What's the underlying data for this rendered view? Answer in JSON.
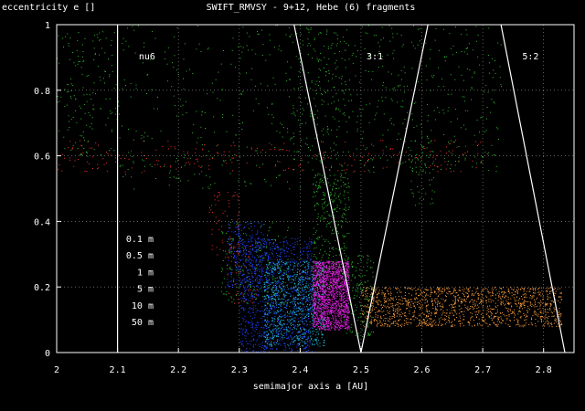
{
  "chart_data": {
    "type": "scatter",
    "title": "SWIFT_RMVSY - 9+12, Hebe (6) fragments",
    "ylabel": "eccentricity e []",
    "xlabel": "semimajor axis a [AU]",
    "xlim": [
      2.0,
      2.85
    ],
    "ylim": [
      0,
      1
    ],
    "x_ticks": [
      "2",
      "2.1",
      "2.2",
      "2.3",
      "2.4",
      "2.5",
      "2.6",
      "2.7",
      "2.8"
    ],
    "y_ticks": [
      "0",
      "0.2",
      "0.4",
      "0.6",
      "0.8",
      "1"
    ],
    "grid": true,
    "legend_labels": [
      "0.1 m",
      "0.5 m",
      "1 m",
      "5 m",
      "10 m",
      "50 m"
    ],
    "series_colors": [
      "#ff3030",
      "#30c030",
      "#2040ff",
      "#e020e0",
      "#20c0e0",
      "#ffa040"
    ],
    "resonances": [
      {
        "label": "nu6",
        "points": [
          [
            2.1,
            0.0
          ],
          [
            2.1,
            1.0
          ]
        ]
      },
      {
        "label": "3:1",
        "points": [
          [
            2.39,
            1.0
          ],
          [
            2.5,
            0.0
          ],
          [
            2.61,
            1.0
          ]
        ]
      },
      {
        "label": "5:2",
        "points": [
          [
            2.73,
            1.0
          ],
          [
            2.835,
            0.0
          ]
        ]
      }
    ],
    "clouds": [
      {
        "a": [
          2.0,
          2.7
        ],
        "e": [
          0.55,
          0.65
        ],
        "n": 240,
        "color": "#ff3030"
      },
      {
        "a": [
          2.25,
          2.3
        ],
        "e": [
          0.25,
          0.5
        ],
        "n": 70,
        "color": "#ff3030"
      },
      {
        "a": [
          2.28,
          2.33
        ],
        "e": [
          0.15,
          0.35
        ],
        "n": 60,
        "color": "#ff3030"
      },
      {
        "a": [
          2.0,
          2.1
        ],
        "e": [
          0.6,
          0.98
        ],
        "n": 160,
        "color": "#30c030"
      },
      {
        "a": [
          2.1,
          2.48
        ],
        "e": [
          0.5,
          1.0
        ],
        "n": 360,
        "color": "#30c030"
      },
      {
        "a": [
          2.38,
          2.6
        ],
        "e": [
          0.55,
          1.0
        ],
        "n": 320,
        "color": "#30c030"
      },
      {
        "a": [
          2.6,
          2.73
        ],
        "e": [
          0.55,
          1.0
        ],
        "n": 160,
        "color": "#30c030"
      },
      {
        "a": [
          2.42,
          2.48
        ],
        "e": [
          0.2,
          0.55
        ],
        "n": 320,
        "color": "#30c030"
      },
      {
        "a": [
          2.47,
          2.52
        ],
        "e": [
          0.05,
          0.3
        ],
        "n": 160,
        "color": "#30c030"
      },
      {
        "a": [
          2.27,
          2.38
        ],
        "e": [
          0.15,
          0.4
        ],
        "n": 200,
        "color": "#30c030"
      },
      {
        "a": [
          2.58,
          2.62
        ],
        "e": [
          0.45,
          0.65
        ],
        "n": 60,
        "color": "#30c030"
      },
      {
        "a": [
          2.3,
          2.42
        ],
        "e": [
          0.0,
          0.35
        ],
        "n": 1200,
        "color": "#2040ff"
      },
      {
        "a": [
          2.28,
          2.34
        ],
        "e": [
          0.2,
          0.4
        ],
        "n": 200,
        "color": "#2040ff"
      },
      {
        "a": [
          2.34,
          2.44
        ],
        "e": [
          0.02,
          0.28
        ],
        "n": 800,
        "color": "#20c0e0"
      },
      {
        "a": [
          2.42,
          2.48
        ],
        "e": [
          0.07,
          0.28
        ],
        "n": 1600,
        "color": "#e020e0"
      },
      {
        "a": [
          2.5,
          2.83
        ],
        "e": [
          0.08,
          0.2
        ],
        "n": 1400,
        "color": "#ffa040"
      }
    ]
  }
}
